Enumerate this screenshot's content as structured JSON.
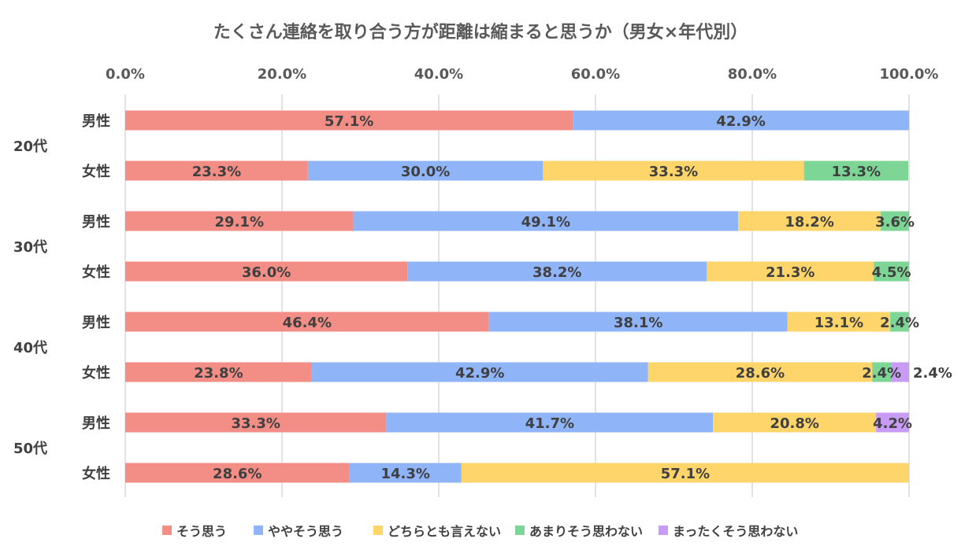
{
  "chart_data": {
    "type": "bar",
    "orientation": "horizontal",
    "stacked": true,
    "title": "たくさん連絡を取り合う方が距離は縮まると思うか（男女×年代別）",
    "x_ticks": [
      "0.0%",
      "20.0%",
      "40.0%",
      "60.0%",
      "80.0%",
      "100.0%"
    ],
    "xlim": [
      0,
      100
    ],
    "x_axis_position": "top",
    "grid": true,
    "legend_position": "bottom",
    "groups": [
      "20代",
      "30代",
      "40代",
      "50代"
    ],
    "rows": [
      {
        "group": "20代",
        "label": "男性"
      },
      {
        "group": "20代",
        "label": "女性"
      },
      {
        "group": "30代",
        "label": "男性"
      },
      {
        "group": "30代",
        "label": "女性"
      },
      {
        "group": "40代",
        "label": "男性"
      },
      {
        "group": "40代",
        "label": "女性"
      },
      {
        "group": "50代",
        "label": "男性"
      },
      {
        "group": "50代",
        "label": "女性"
      }
    ],
    "series": [
      {
        "name": "そう思う",
        "color": "#f28e86",
        "values": [
          57.1,
          23.3,
          29.1,
          36.0,
          46.4,
          23.8,
          33.3,
          28.6
        ]
      },
      {
        "name": "ややそう思う",
        "color": "#8fb4f7",
        "values": [
          42.9,
          30.0,
          49.1,
          38.2,
          38.1,
          42.9,
          41.7,
          14.3
        ]
      },
      {
        "name": "どちらとも言えない",
        "color": "#fdd56a",
        "values": [
          0,
          33.3,
          18.2,
          21.3,
          13.1,
          28.6,
          20.8,
          57.1
        ]
      },
      {
        "name": "あまりそう思わない",
        "color": "#7dd695",
        "values": [
          0,
          13.3,
          3.6,
          4.5,
          2.4,
          2.4,
          0,
          0
        ]
      },
      {
        "name": "まったくそう思わない",
        "color": "#c89cf4",
        "values": [
          0,
          0,
          0,
          0,
          0,
          2.4,
          4.2,
          0
        ]
      }
    ]
  }
}
